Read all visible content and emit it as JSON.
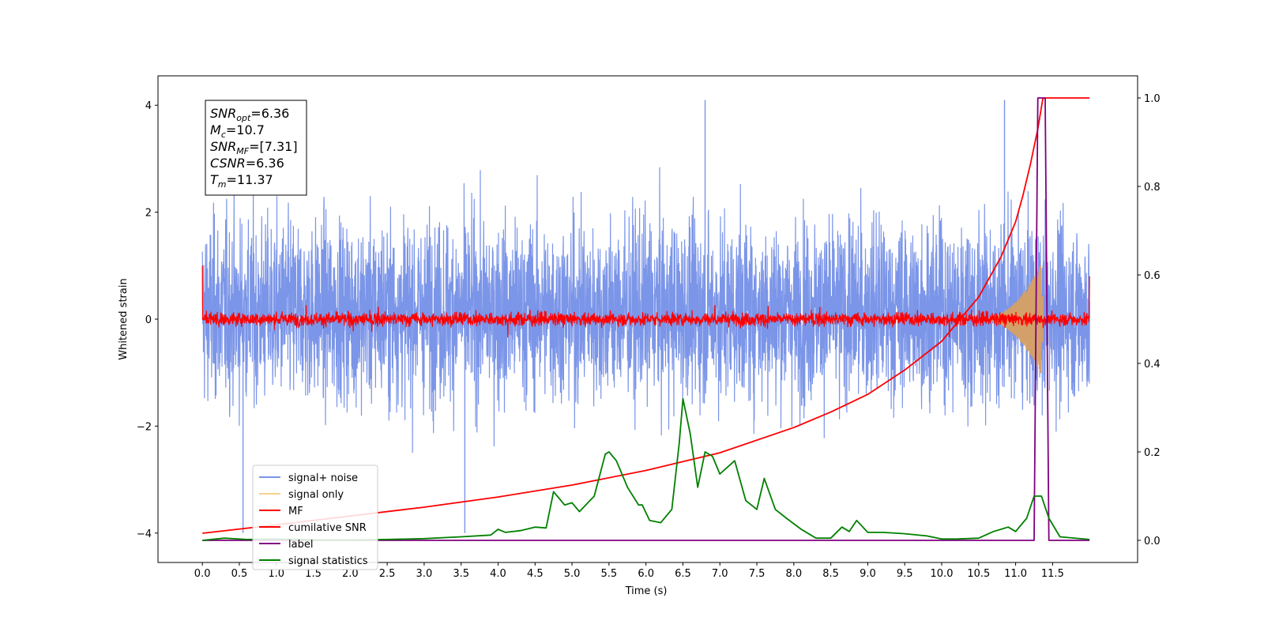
{
  "chart_data": {
    "type": "line",
    "xlabel": "Time (s)",
    "ylabel": "Whitened strain",
    "xlim": [
      -0.6,
      12.65
    ],
    "ylim": [
      -4.55,
      4.55
    ],
    "y2lim": [
      -0.05,
      1.05
    ],
    "x_ticks": [
      "0.0",
      "0.5",
      "1.0",
      "1.5",
      "2.0",
      "2.5",
      "3.0",
      "3.5",
      "4.0",
      "4.5",
      "5.0",
      "5.5",
      "6.0",
      "6.5",
      "7.0",
      "7.5",
      "8.0",
      "8.5",
      "9.0",
      "9.5",
      "10.0",
      "10.5",
      "11.0",
      "11.5"
    ],
    "y_ticks": [
      "4",
      "2",
      "0",
      "−2",
      "−4"
    ],
    "y2_ticks": [
      "1.0",
      "0.8",
      "0.6",
      "0.4",
      "0.2",
      "0.0"
    ],
    "annotation": {
      "snr_opt": "=6.36",
      "mc": "=10.7",
      "snr_mf": "=[7.31]",
      "csnr": "=6.36",
      "tm": "=11.37"
    },
    "legend": [
      {
        "label": "signal+ noise",
        "color": "#7b95e8"
      },
      {
        "label": "signal only",
        "color": "#f7d28a"
      },
      {
        "label": "MF",
        "color": "#ff0000"
      },
      {
        "label": "cumilative SNR",
        "color": "#ff0000"
      },
      {
        "label": "label",
        "color": "#800080"
      },
      {
        "label": "signal statistics",
        "color": "#008000"
      }
    ],
    "series": [
      {
        "name": "signal+ noise",
        "axis": "left",
        "band": [
          -2.0,
          2.3
        ],
        "x_range": [
          0.0,
          12.0
        ],
        "peaks": [
          {
            "x": 6.8,
            "y": 4.1
          },
          {
            "x": 10.85,
            "y": 4.1
          },
          {
            "x": 3.55,
            "y": -4.0
          },
          {
            "x": 0.55,
            "y": -4.0
          }
        ]
      },
      {
        "name": "signal only",
        "axis": "left",
        "x_range": [
          10.5,
          11.37
        ],
        "max_amplitude": 1.1
      },
      {
        "name": "MF",
        "axis": "left",
        "band": [
          -0.2,
          0.2
        ],
        "x_range": [
          0.0,
          12.0
        ],
        "start": 1.0,
        "end": 0.8
      },
      {
        "name": "cumilative SNR",
        "axis": "right",
        "x": [
          0.0,
          1.0,
          2.0,
          3.0,
          4.0,
          5.0,
          6.0,
          7.0,
          8.0,
          8.5,
          9.0,
          9.5,
          10.0,
          10.5,
          10.8,
          11.0,
          11.1,
          11.2,
          11.3,
          11.37,
          11.5,
          12.0
        ],
        "y": [
          0.016,
          0.035,
          0.055,
          0.075,
          0.098,
          0.125,
          0.158,
          0.198,
          0.255,
          0.29,
          0.33,
          0.385,
          0.45,
          0.55,
          0.64,
          0.72,
          0.78,
          0.85,
          0.93,
          1.0,
          1.0,
          1.0
        ]
      },
      {
        "name": "label",
        "axis": "right",
        "x": [
          0.0,
          11.25,
          11.3,
          11.4,
          11.45,
          12.0
        ],
        "y": [
          0.0,
          0.0,
          1.0,
          1.0,
          0.0,
          0.0
        ]
      },
      {
        "name": "signal statistics",
        "axis": "right",
        "x": [
          0.0,
          0.3,
          0.6,
          1.0,
          1.5,
          2.0,
          2.5,
          3.0,
          3.5,
          3.9,
          4.0,
          4.1,
          4.3,
          4.5,
          4.65,
          4.75,
          4.8,
          4.9,
          5.0,
          5.1,
          5.3,
          5.45,
          5.5,
          5.6,
          5.75,
          5.9,
          5.95,
          6.05,
          6.2,
          6.35,
          6.45,
          6.5,
          6.6,
          6.7,
          6.8,
          6.9,
          7.0,
          7.1,
          7.2,
          7.35,
          7.5,
          7.6,
          7.75,
          7.9,
          8.1,
          8.3,
          8.5,
          8.65,
          8.75,
          8.85,
          9.0,
          9.2,
          9.5,
          9.8,
          10.0,
          10.2,
          10.5,
          10.7,
          10.9,
          11.0,
          11.15,
          11.25,
          11.35,
          11.45,
          11.6,
          12.0
        ],
        "y": [
          0.0,
          0.005,
          0.002,
          0.003,
          0.001,
          0.001,
          0.002,
          0.004,
          0.008,
          0.012,
          0.025,
          0.018,
          0.022,
          0.03,
          0.028,
          0.11,
          0.1,
          0.08,
          0.085,
          0.065,
          0.1,
          0.195,
          0.2,
          0.18,
          0.12,
          0.08,
          0.08,
          0.045,
          0.04,
          0.07,
          0.22,
          0.32,
          0.24,
          0.12,
          0.2,
          0.19,
          0.15,
          0.165,
          0.18,
          0.09,
          0.07,
          0.14,
          0.07,
          0.05,
          0.025,
          0.005,
          0.005,
          0.03,
          0.02,
          0.045,
          0.018,
          0.018,
          0.015,
          0.01,
          0.003,
          0.003,
          0.005,
          0.02,
          0.03,
          0.02,
          0.05,
          0.1,
          0.1,
          0.05,
          0.008,
          0.002
        ]
      }
    ]
  }
}
